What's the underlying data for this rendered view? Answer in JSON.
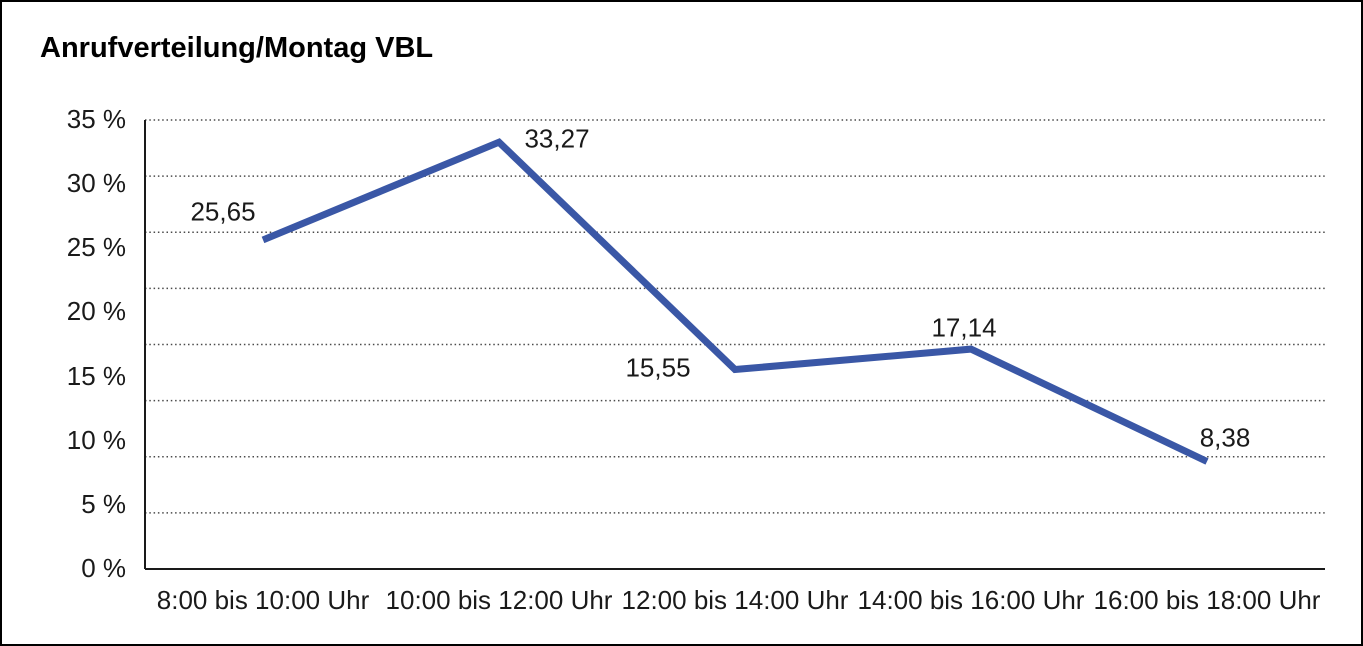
{
  "window": {
    "background": "#ffffff",
    "frame_border_color": "#000000"
  },
  "chart_data": {
    "type": "line",
    "title": "Anrufverteilung/Montag VBL",
    "categories": [
      "8:00 bis 10:00 Uhr",
      "10:00 bis 12:00 Uhr",
      "12:00 bis 14:00 Uhr",
      "14:00 bis 16:00 Uhr",
      "16:00 bis 18:00 Uhr"
    ],
    "values": [
      25.65,
      33.27,
      15.55,
      17.14,
      8.38
    ],
    "point_labels": [
      "25,65",
      "33,27",
      "15,55",
      "17,14",
      "8,38"
    ],
    "xlabel": "",
    "ylabel": "",
    "ylim": [
      0,
      35
    ],
    "yticks": [
      {
        "value": 35,
        "label": "35 %"
      },
      {
        "value": 30,
        "label": "30 %"
      },
      {
        "value": 25,
        "label": "25 %"
      },
      {
        "value": 20,
        "label": "20 %"
      },
      {
        "value": 15,
        "label": "15 %"
      },
      {
        "value": 10,
        "label": "10 %"
      },
      {
        "value": 5,
        "label": "5 %"
      },
      {
        "value": 0,
        "label": "0 %"
      }
    ],
    "grid": "horizontal-dotted",
    "legend": "none",
    "line_color": "#3A57A6",
    "gridline_color": "#4a4a4a",
    "axis_color": "#1a1a1a",
    "text_color": "#1a1a1a"
  }
}
